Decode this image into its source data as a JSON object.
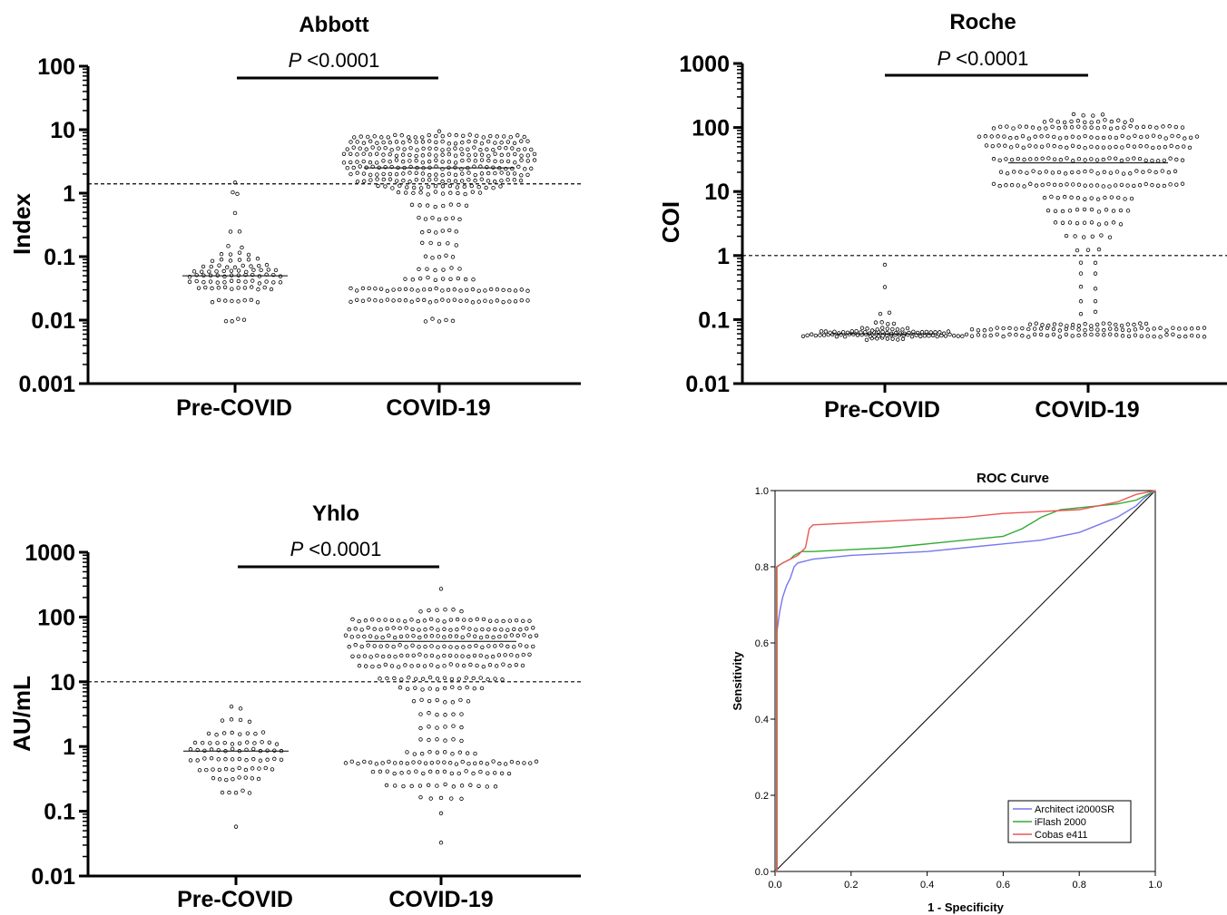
{
  "chart_data": [
    {
      "type": "scatter",
      "title": "Abbott",
      "ylabel": "Index",
      "yscale": "log",
      "ylim": [
        0.001,
        100
      ],
      "yticks": [
        "100",
        "10",
        "1",
        "0.1",
        "0.01",
        "0.001"
      ],
      "categories": [
        "Pre-COVID",
        "COVID-19"
      ],
      "cutoff": 1.4,
      "annotation": {
        "p_label": "P",
        "p_value": "<0.0001"
      },
      "groups": [
        {
          "name": "Pre-COVID",
          "median": 0.05,
          "range": [
            0.01,
            1.4
          ]
        },
        {
          "name": "COVID-19",
          "median": 2.5,
          "range": [
            0.01,
            9.5
          ]
        }
      ]
    },
    {
      "type": "scatter",
      "title": "Roche",
      "ylabel": "COI",
      "yscale": "log",
      "ylim": [
        0.01,
        1000
      ],
      "yticks": [
        "1000",
        "100",
        "10",
        "1",
        "0.1",
        "0.01"
      ],
      "categories": [
        "Pre-COVID",
        "COVID-19"
      ],
      "cutoff": 1,
      "annotation": {
        "p_label": "P",
        "p_value": "<0.0001"
      },
      "groups": [
        {
          "name": "Pre-COVID",
          "median": 0.06,
          "range": [
            0.045,
            0.7
          ]
        },
        {
          "name": "COVID-19",
          "median": 28,
          "range": [
            0.05,
            160
          ]
        }
      ]
    },
    {
      "type": "scatter",
      "title": "Yhlo",
      "ylabel": "AU/mL",
      "yscale": "log",
      "ylim": [
        0.01,
        1000
      ],
      "yticks": [
        "1000",
        "100",
        "10",
        "1",
        "0.1",
        "0.01"
      ],
      "categories": [
        "Pre-COVID",
        "COVID-19"
      ],
      "cutoff": 10,
      "annotation": {
        "p_label": "P",
        "p_value": "<0.0001"
      },
      "groups": [
        {
          "name": "Pre-COVID",
          "median": 0.85,
          "range": [
            0.06,
            4
          ]
        },
        {
          "name": "COVID-19",
          "median": 42,
          "range": [
            0.03,
            290
          ]
        }
      ]
    },
    {
      "type": "line",
      "title": "ROC Curve",
      "xlabel": "1 - Specificity",
      "ylabel": "Sensitivity",
      "xlim": [
        0,
        1
      ],
      "ylim": [
        0,
        1
      ],
      "xticks": [
        "0.0",
        "0.2",
        "0.4",
        "0.6",
        "0.8",
        "1.0"
      ],
      "yticks": [
        "0.0",
        "0.2",
        "0.4",
        "0.6",
        "0.8",
        "1.0"
      ],
      "legend": "bottom-right",
      "series": [
        {
          "name": "Architect i2000SR",
          "color": "#7777ee",
          "x": [
            0,
            0.005,
            0.005,
            0.012,
            0.02,
            0.03,
            0.04,
            0.05,
            0.06,
            0.08,
            0.1,
            0.2,
            0.3,
            0.4,
            0.5,
            0.6,
            0.7,
            0.8,
            0.85,
            0.9,
            0.95,
            0.97,
            1.0
          ],
          "y": [
            0,
            0,
            0.63,
            0.68,
            0.72,
            0.75,
            0.77,
            0.8,
            0.81,
            0.815,
            0.82,
            0.83,
            0.835,
            0.84,
            0.85,
            0.86,
            0.87,
            0.89,
            0.91,
            0.93,
            0.96,
            0.98,
            1.0
          ]
        },
        {
          "name": "iFlash 2000",
          "color": "#33aa33",
          "x": [
            0,
            0.005,
            0.005,
            0.02,
            0.04,
            0.05,
            0.07,
            0.1,
            0.2,
            0.3,
            0.4,
            0.5,
            0.6,
            0.65,
            0.7,
            0.75,
            0.8,
            0.85,
            0.9,
            0.95,
            0.98,
            1.0
          ],
          "y": [
            0,
            0,
            0.8,
            0.81,
            0.82,
            0.83,
            0.84,
            0.84,
            0.845,
            0.85,
            0.86,
            0.87,
            0.88,
            0.9,
            0.93,
            0.95,
            0.955,
            0.96,
            0.965,
            0.975,
            0.99,
            1.0
          ]
        },
        {
          "name": "Cobas e411",
          "color": "#ee5555",
          "x": [
            0,
            0.004,
            0.004,
            0.02,
            0.04,
            0.06,
            0.08,
            0.09,
            0.1,
            0.2,
            0.3,
            0.4,
            0.5,
            0.6,
            0.7,
            0.8,
            0.9,
            0.95,
            1.0
          ],
          "y": [
            0,
            0,
            0.8,
            0.81,
            0.82,
            0.83,
            0.85,
            0.9,
            0.91,
            0.915,
            0.92,
            0.925,
            0.93,
            0.94,
            0.945,
            0.95,
            0.97,
            0.99,
            1.0
          ]
        }
      ]
    }
  ]
}
